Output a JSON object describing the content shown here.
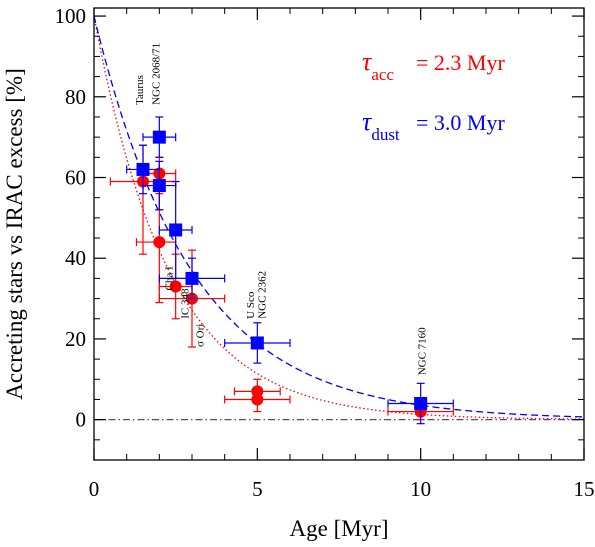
{
  "chart_data": {
    "type": "scatter",
    "title": "",
    "xlabel": "Age [Myr]",
    "ylabel": "Accreting stars vs IRAC excess [%]",
    "xlim": [
      0,
      15
    ],
    "ylim": [
      -10,
      102
    ],
    "xticks": [
      0,
      5,
      10,
      15
    ],
    "xtick_labels": [
      "0",
      "5",
      "10",
      "15"
    ],
    "yticks": [
      0,
      20,
      40,
      60,
      80,
      100
    ],
    "ytick_labels": [
      "0",
      "20",
      "40",
      "60",
      "80",
      "100"
    ],
    "grid": false,
    "colors": {
      "accretion": "#ff0000",
      "dust": "#0000ff",
      "zero_line": "#555555"
    },
    "series": [
      {
        "marker": "circle",
        "color": "#ff0000",
        "points": [
          {
            "x": 1.5,
            "y": 59,
            "xerr": [
              1.0,
              1.0
            ],
            "yerr": [
              18,
              9
            ]
          },
          {
            "x": 2.0,
            "y": 61,
            "xerr": [
              0.5,
              0.5
            ],
            "yerr": [
              9,
              4
            ]
          },
          {
            "x": 2.0,
            "y": 44,
            "xerr": [
              0.7,
              0.5
            ],
            "yerr": [
              15,
              12
            ]
          },
          {
            "x": 2.5,
            "y": 33,
            "xerr": [
              0.5,
              0.5
            ],
            "yerr": [
              8,
              8
            ]
          },
          {
            "x": 3.0,
            "y": 30,
            "xerr": [
              1.0,
              1.0
            ],
            "yerr": [
              12,
              12
            ]
          },
          {
            "x": 5.0,
            "y": 7,
            "xerr": [
              0.7,
              0.7
            ],
            "yerr": [
              3,
              3
            ]
          },
          {
            "x": 5.0,
            "y": 5,
            "xerr": [
              1.0,
              1.0
            ],
            "yerr": [
              3,
              3
            ]
          },
          {
            "x": 10.0,
            "y": 2,
            "xerr": [
              1.0,
              1.0
            ],
            "yerr": [
              2,
              2
            ]
          }
        ]
      },
      {
        "marker": "square",
        "color": "#0000ff",
        "points": [
          {
            "x": 1.5,
            "y": 62,
            "xerr": [
              0.5,
              0.5
            ],
            "yerr": [
              6,
              6
            ]
          },
          {
            "x": 2.0,
            "y": 70,
            "xerr": [
              0.5,
              0.5
            ],
            "yerr": [
              5,
              5
            ]
          },
          {
            "x": 2.0,
            "y": 58,
            "xerr": [
              0.5,
              0.5
            ],
            "yerr": [
              6,
              6
            ]
          },
          {
            "x": 2.5,
            "y": 47,
            "xerr": [
              0.5,
              0.5
            ],
            "yerr": [
              12,
              12
            ]
          },
          {
            "x": 3.0,
            "y": 35,
            "xerr": [
              1.0,
              1.0
            ],
            "yerr": [
              5,
              5
            ]
          },
          {
            "x": 5.0,
            "y": 19,
            "xerr": [
              1.0,
              1.0
            ],
            "yerr": [
              5,
              5
            ]
          },
          {
            "x": 10.0,
            "y": 4,
            "xerr": [
              1.0,
              1.0
            ],
            "yerr": [
              5,
              5
            ]
          }
        ]
      }
    ],
    "fits": [
      {
        "tau": 2.3,
        "amplitude": 100,
        "style": "dotted",
        "color": "#ff0000"
      },
      {
        "tau": 3.0,
        "amplitude": 100,
        "style": "dashed",
        "color": "#0000ff"
      }
    ],
    "zero_line": {
      "y": 0,
      "style": "dash-dot",
      "color": "#555555"
    },
    "annotations": [
      {
        "symbol": "τ",
        "subscript": "acc",
        "text": "= 2.3 Myr",
        "color": "#ff0000"
      },
      {
        "symbol": "τ",
        "subscript": "dust",
        "text": "= 3.0 Myr",
        "color": "#0000ff"
      }
    ],
    "cluster_labels": [
      {
        "text": "Taurus",
        "x": 1.5,
        "y": 78
      },
      {
        "text": "NGC 2068/71",
        "x": 2.0,
        "y": 78
      },
      {
        "text": "Cha I",
        "x": 2.4,
        "y": 32
      },
      {
        "text": "IC 348",
        "x": 2.9,
        "y": 25
      },
      {
        "text": "σ Ori",
        "x": 3.35,
        "y": 18
      },
      {
        "text": "U Sco",
        "x": 4.9,
        "y": 25
      },
      {
        "text": "NGC 2362",
        "x": 5.25,
        "y": 25
      },
      {
        "text": "NGC 7160",
        "x": 10.15,
        "y": 11
      }
    ]
  }
}
